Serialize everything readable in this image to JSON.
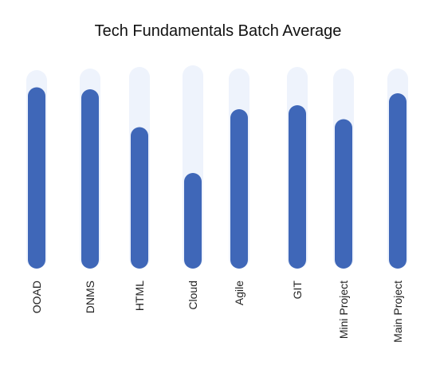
{
  "chart_data": {
    "type": "bar",
    "title": "Tech Fundamentals Batch Average",
    "categories": [
      "OOAD",
      "DNMS",
      "HTML",
      "Cloud",
      "Agile",
      "GIT",
      "Mini Project",
      "Main Project"
    ],
    "values": [
      91,
      90,
      71,
      48,
      80,
      82,
      75,
      88
    ],
    "ylim": [
      0,
      100
    ],
    "grid": false,
    "colors": {
      "bar": "#3F67B8",
      "track": "#EEF3FC"
    }
  }
}
